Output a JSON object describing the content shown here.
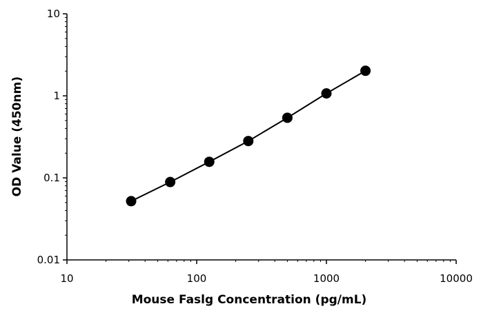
{
  "chart_data": {
    "type": "scatter",
    "title": "",
    "xlabel": "Mouse Faslg Concentration (pg/mL)",
    "ylabel": "OD Value (450nm)",
    "xscale": "log",
    "yscale": "log",
    "xlim": [
      10,
      10000
    ],
    "ylim": [
      0.01,
      10
    ],
    "xticks": [
      "10",
      "100",
      "1000",
      "10000"
    ],
    "yticks": [
      "0.01",
      "0.1",
      "1",
      "10"
    ],
    "grid": false,
    "legend": "none",
    "marker_color": "#000000",
    "line_color": "#000000",
    "series": [
      {
        "x": [
          31.25,
          62.5,
          125,
          250,
          500,
          1000,
          2000
        ],
        "y": [
          0.052,
          0.089,
          0.157,
          0.281,
          0.54,
          1.07,
          2.02
        ]
      }
    ]
  }
}
